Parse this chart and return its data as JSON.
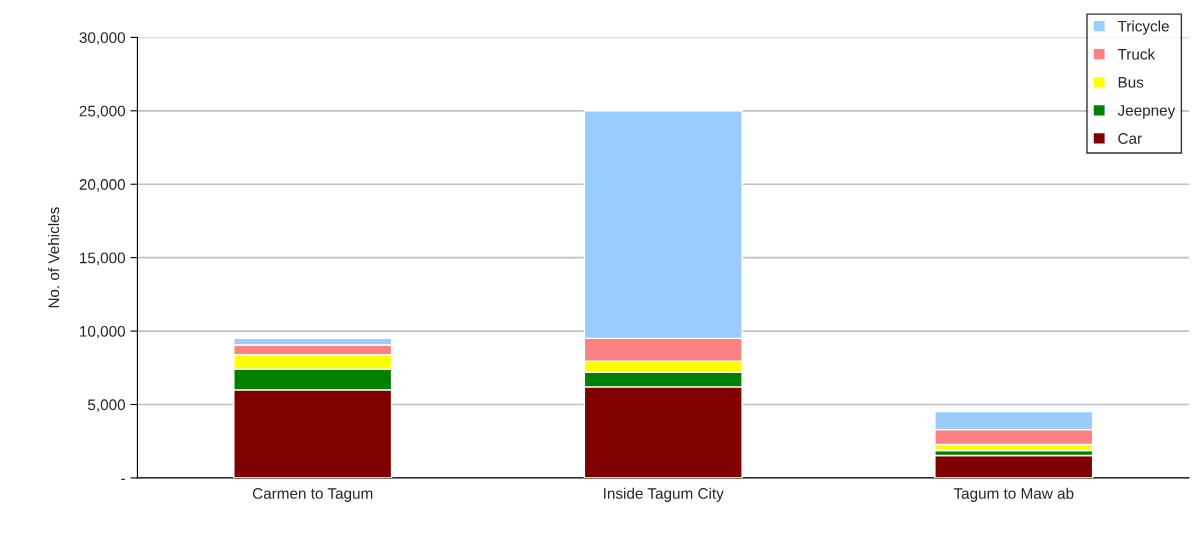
{
  "chart_data": {
    "type": "bar",
    "stacked": true,
    "ylabel": "No. of Vehicles",
    "categories": [
      "Carmen to Tagum",
      "Inside Tagum City",
      "Tagum to Maw ab"
    ],
    "series": [
      {
        "name": "Car",
        "color": "#800000",
        "values": [
          6000,
          6200,
          1530
        ]
      },
      {
        "name": "Jeepney",
        "color": "#008000",
        "values": [
          1400,
          1000,
          340
        ]
      },
      {
        "name": "Bus",
        "color": "#ffff00",
        "values": [
          1000,
          750,
          410
        ]
      },
      {
        "name": "Truck",
        "color": "#ff8080",
        "values": [
          650,
          1550,
          1010
        ]
      },
      {
        "name": "Tricycle",
        "color": "#99ccff",
        "values": [
          450,
          15500,
          1230
        ]
      }
    ],
    "ylim": [
      0,
      30000
    ],
    "yticks": [
      {
        "value": 0,
        "label": "-"
      },
      {
        "value": 5000,
        "label": "5,000"
      },
      {
        "value": 10000,
        "label": "10,000"
      },
      {
        "value": 15000,
        "label": "15,000"
      },
      {
        "value": 20000,
        "label": "20,000"
      },
      {
        "value": 25000,
        "label": "25,000"
      },
      {
        "value": 30000,
        "label": "30,000"
      }
    ],
    "grid": "y",
    "legend": "top right"
  }
}
